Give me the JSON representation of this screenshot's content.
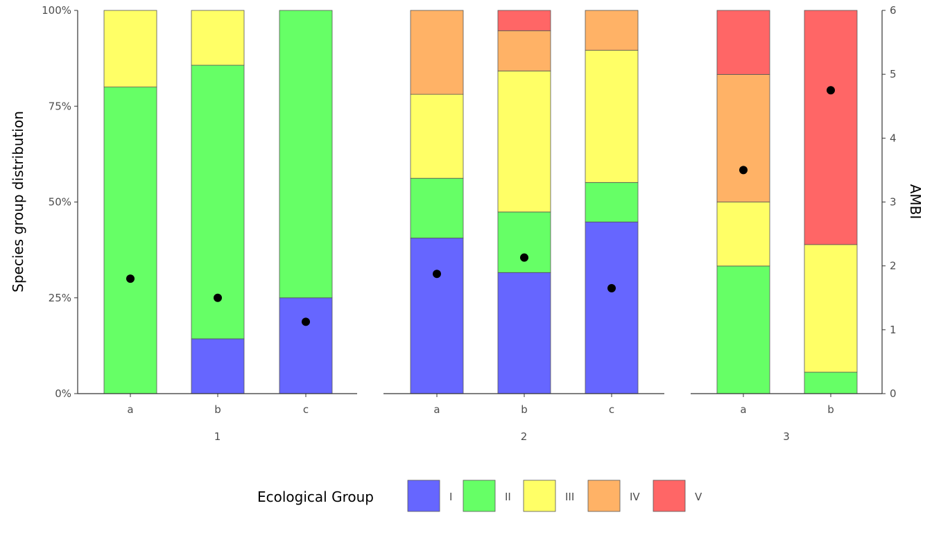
{
  "chart_data": {
    "type": "bar",
    "stacked": true,
    "ylabel": "Species group distribution",
    "y2label": "AMBI",
    "ylim": [
      0,
      100
    ],
    "y2lim": [
      0,
      6
    ],
    "yticks": [
      "0%",
      "25%",
      "50%",
      "75%",
      "100%"
    ],
    "y2ticks": [
      "0",
      "1",
      "2",
      "3",
      "4",
      "5",
      "6"
    ],
    "legend": {
      "title": "Ecological Group",
      "position": "bottom"
    },
    "groups": [
      "I",
      "II",
      "III",
      "IV",
      "V"
    ],
    "colors": {
      "I": "#6666ff",
      "II": "#66ff66",
      "III": "#ffff66",
      "IV": "#ffb266",
      "V": "#ff6666"
    },
    "grid": false,
    "panels": [
      {
        "label": "1",
        "bars": [
          {
            "x": "a",
            "values": [
              0,
              80,
              20,
              0,
              0
            ],
            "ambi": 1.8
          },
          {
            "x": "b",
            "values": [
              14.3,
              71.4,
              14.3,
              0,
              0
            ],
            "ambi": 1.5
          },
          {
            "x": "c",
            "values": [
              25,
              75,
              0,
              0,
              0
            ],
            "ambi": 1.125
          }
        ]
      },
      {
        "label": "2",
        "bars": [
          {
            "x": "a",
            "values": [
              40.6,
              15.6,
              21.9,
              21.9,
              0
            ],
            "ambi": 1.875
          },
          {
            "x": "b",
            "values": [
              31.6,
              15.8,
              36.8,
              10.5,
              5.3
            ],
            "ambi": 2.13
          },
          {
            "x": "c",
            "values": [
              44.8,
              10.3,
              34.5,
              10.4,
              0
            ],
            "ambi": 1.65
          }
        ]
      },
      {
        "label": "3",
        "bars": [
          {
            "x": "a",
            "values": [
              0,
              33.3,
              16.7,
              33.3,
              16.7
            ],
            "ambi": 3.5
          },
          {
            "x": "b",
            "values": [
              0,
              5.6,
              33.3,
              0,
              61.1
            ],
            "ambi": 4.75
          }
        ]
      }
    ]
  }
}
